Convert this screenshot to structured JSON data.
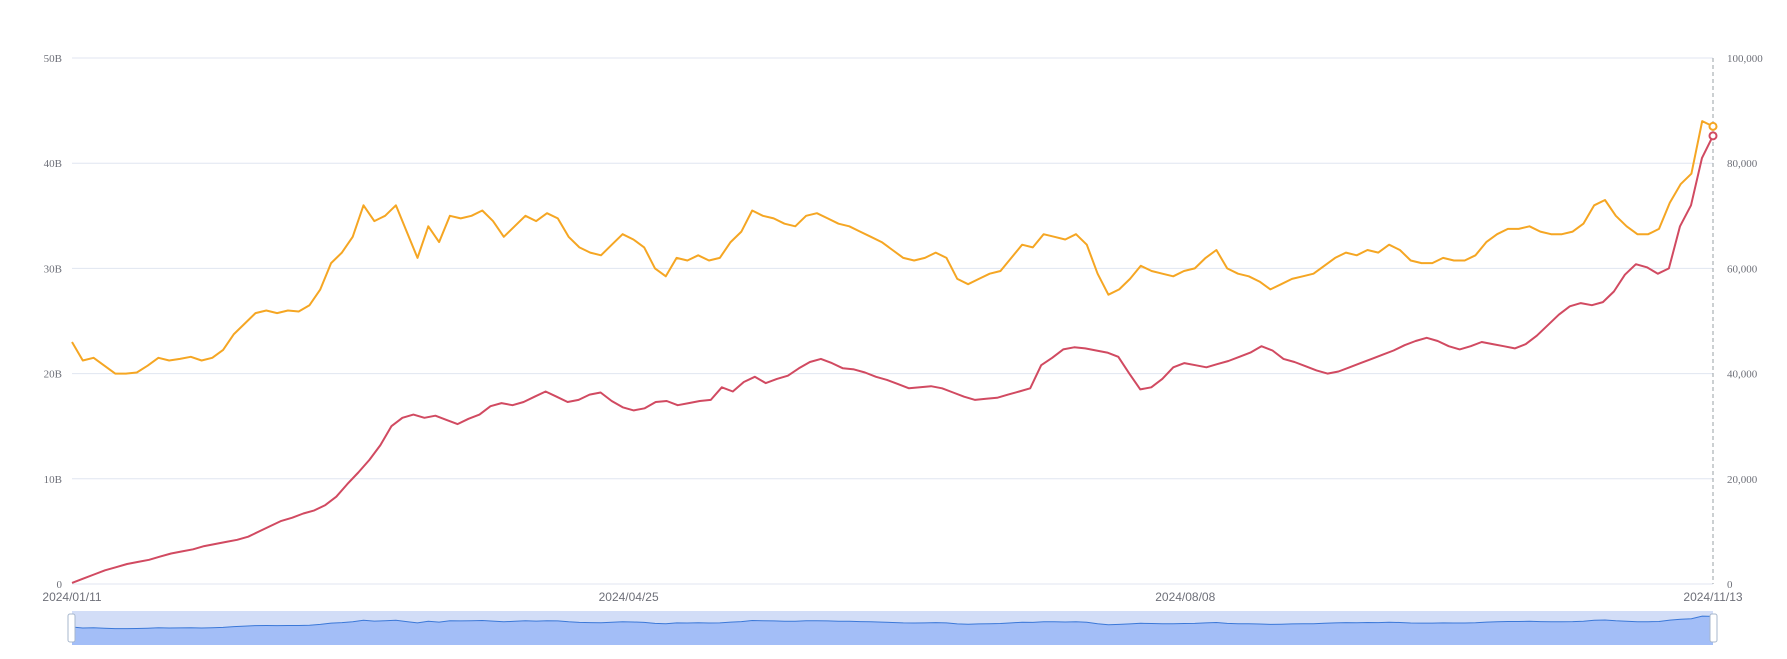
{
  "chart_data": {
    "type": "line",
    "dual_axis": true,
    "x_start": "2024/01/11",
    "x_end": "2024/11/13",
    "x_ticks": [
      "2024/01/11",
      "2024/04/25",
      "2024/08/08",
      "2024/11/13"
    ],
    "y_left": {
      "min": 0,
      "max": 50,
      "ticks": [
        "0",
        "10B",
        "20B",
        "30B",
        "40B",
        "50B"
      ]
    },
    "y_right": {
      "min": 0,
      "max": 100000,
      "ticks": [
        "0",
        "20,000",
        "40,000",
        "60,000",
        "80,000",
        "100,000"
      ]
    },
    "grid": true,
    "has_data_zoom": true,
    "series": [
      {
        "axis": "left",
        "unit": "B",
        "color": "#d14a61",
        "values": [
          0.1,
          0.5,
          0.9,
          1.3,
          1.6,
          1.9,
          2.1,
          2.3,
          2.6,
          2.9,
          3.1,
          3.3,
          3.6,
          3.8,
          4.0,
          4.2,
          4.5,
          5.0,
          5.5,
          6.0,
          6.3,
          6.7,
          7.0,
          7.5,
          8.3,
          9.5,
          10.6,
          11.8,
          13.2,
          15.0,
          15.8,
          16.1,
          15.8,
          16.0,
          15.6,
          15.2,
          15.7,
          16.1,
          16.9,
          17.2,
          17.0,
          17.3,
          17.8,
          18.3,
          17.8,
          17.3,
          17.5,
          18.0,
          18.2,
          17.4,
          16.8,
          16.5,
          16.7,
          17.3,
          17.4,
          17.0,
          17.2,
          17.4,
          17.5,
          18.7,
          18.3,
          19.2,
          19.7,
          19.1,
          19.5,
          19.8,
          20.5,
          21.1,
          21.4,
          21.0,
          20.5,
          20.4,
          20.1,
          19.7,
          19.4,
          19.0,
          18.6,
          18.7,
          18.8,
          18.6,
          18.2,
          17.8,
          17.5,
          17.6,
          17.7,
          18.0,
          18.3,
          18.6,
          20.8,
          21.5,
          22.3,
          22.5,
          22.4,
          22.2,
          22.0,
          21.6,
          20.0,
          18.5,
          18.7,
          19.5,
          20.6,
          21.0,
          20.8,
          20.6,
          20.9,
          21.2,
          21.6,
          22.0,
          22.6,
          22.2,
          21.4,
          21.1,
          20.7,
          20.3,
          20.0,
          20.2,
          20.6,
          21.0,
          21.4,
          21.8,
          22.2,
          22.7,
          23.1,
          23.4,
          23.1,
          22.6,
          22.3,
          22.6,
          23.0,
          22.8,
          22.6,
          22.4,
          22.8,
          23.6,
          24.6,
          25.6,
          26.4,
          26.7,
          26.5,
          26.8,
          27.8,
          29.4,
          30.4,
          30.1,
          29.5,
          30.0,
          34.0,
          36.0,
          40.5,
          42.6
        ]
      },
      {
        "axis": "right",
        "unit": "",
        "color": "#f5a623",
        "values": [
          46000,
          42500,
          43000,
          41500,
          40000,
          40000,
          40200,
          41500,
          43000,
          42500,
          42800,
          43200,
          42500,
          43000,
          44500,
          47500,
          49500,
          51500,
          52000,
          51500,
          52000,
          51800,
          53000,
          56000,
          61000,
          63000,
          66000,
          72000,
          69000,
          70000,
          72000,
          67000,
          62000,
          68000,
          65000,
          70000,
          69500,
          70000,
          71000,
          69000,
          66000,
          68000,
          70000,
          69000,
          70500,
          69500,
          66000,
          64000,
          63000,
          62500,
          64500,
          66500,
          65500,
          64000,
          60000,
          58500,
          62000,
          61500,
          62500,
          61500,
          62000,
          65000,
          67000,
          71000,
          70000,
          69500,
          68500,
          68000,
          70000,
          70500,
          69500,
          68500,
          68000,
          67000,
          66000,
          65000,
          63500,
          62000,
          61500,
          62000,
          63000,
          62000,
          58000,
          57000,
          58000,
          59000,
          59500,
          62000,
          64500,
          64000,
          66500,
          66000,
          65500,
          66500,
          64500,
          59000,
          55000,
          56000,
          58000,
          60500,
          59500,
          59000,
          58500,
          59500,
          60000,
          62000,
          63500,
          60000,
          59000,
          58500,
          57500,
          56000,
          57000,
          58000,
          58500,
          59000,
          60500,
          62000,
          63000,
          62500,
          63500,
          63000,
          64500,
          63500,
          61500,
          61000,
          61000,
          62000,
          61500,
          61500,
          62500,
          65000,
          66500,
          67500,
          67500,
          68000,
          67000,
          66500,
          66500,
          67000,
          68500,
          72000,
          73000,
          70000,
          68000,
          66500,
          66500,
          67500,
          72500,
          76000,
          78000,
          88000,
          87000
        ]
      }
    ]
  },
  "colors": {
    "grid": "#e0e6f1",
    "axis_label": "#6e7079",
    "zoom_fill": "#d2ddf7",
    "zoom_area": "#8fb0f7",
    "zoom_line": "#3b78d8",
    "zoom_handle": "#a7b7cc"
  }
}
